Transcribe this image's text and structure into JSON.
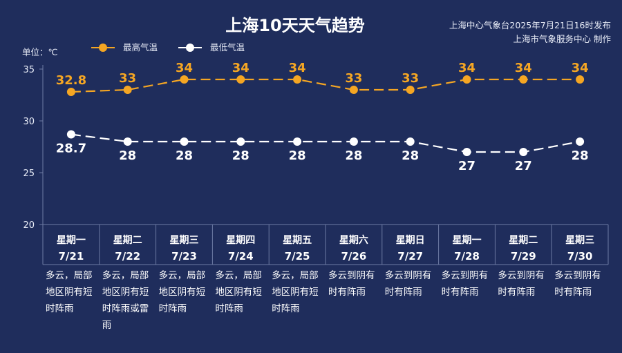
{
  "header": {
    "title": "上海10天天气趋势",
    "publisher_line1": "上海中心气象台2025年7月21日16时发布",
    "publisher_line2": "上海市气象服务中心 制作",
    "unit_label": "单位：℃"
  },
  "colors": {
    "background": "#1f2d5c",
    "high": "#f5a623",
    "low": "#ffffff",
    "grid": "#6d7aa3"
  },
  "chart_data": {
    "type": "line",
    "title": "上海10天天气趋势",
    "ylabel": "单位：℃",
    "ylim": [
      20,
      35
    ],
    "yticks": [
      20,
      25,
      30,
      35
    ],
    "legend_position": "top-left",
    "categories": [
      "7/21",
      "7/22",
      "7/23",
      "7/24",
      "7/25",
      "7/26",
      "7/27",
      "7/28",
      "7/29",
      "7/30"
    ],
    "series": [
      {
        "name": "最高气温",
        "values": [
          32.8,
          33,
          34,
          34,
          34,
          33,
          33,
          34,
          34,
          34
        ],
        "color": "#f5a623"
      },
      {
        "name": "最低气温",
        "values": [
          28.7,
          28,
          28,
          28,
          28,
          28,
          28,
          27,
          27,
          28
        ],
        "color": "#ffffff"
      }
    ]
  },
  "days": [
    {
      "weekday": "星期一",
      "date": "7/21",
      "desc": [
        "多云，局部",
        "地区阴有短",
        "时阵雨"
      ]
    },
    {
      "weekday": "星期二",
      "date": "7/22",
      "desc": [
        "多云，局部",
        "地区阴有短",
        "时阵雨或雷",
        "雨"
      ]
    },
    {
      "weekday": "星期三",
      "date": "7/23",
      "desc": [
        "多云，局部",
        "地区阴有短",
        "时阵雨"
      ]
    },
    {
      "weekday": "星期四",
      "date": "7/24",
      "desc": [
        "多云，局部",
        "地区阴有短",
        "时阵雨"
      ]
    },
    {
      "weekday": "星期五",
      "date": "7/25",
      "desc": [
        "多云，局部",
        "地区阴有短",
        "时阵雨"
      ]
    },
    {
      "weekday": "星期六",
      "date": "7/26",
      "desc": [
        "多云到阴有",
        "时有阵雨"
      ]
    },
    {
      "weekday": "星期日",
      "date": "7/27",
      "desc": [
        "多云到阴有",
        "时有阵雨"
      ]
    },
    {
      "weekday": "星期一",
      "date": "7/28",
      "desc": [
        "多云到阴有",
        "时有阵雨"
      ]
    },
    {
      "weekday": "星期二",
      "date": "7/29",
      "desc": [
        "多云到阴有",
        "时有阵雨"
      ]
    },
    {
      "weekday": "星期三",
      "date": "7/30",
      "desc": [
        "多云到阴有",
        "时有阵雨"
      ]
    }
  ]
}
